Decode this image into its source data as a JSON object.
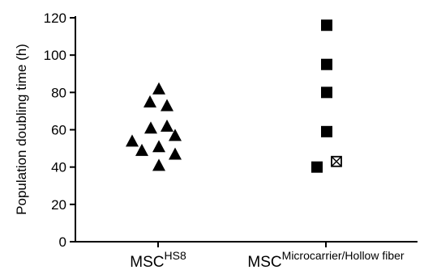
{
  "chart_data": {
    "type": "scatter",
    "title": "",
    "ylabel": "Population doubling time (h)",
    "xlabel": "",
    "ylim": [
      0,
      120
    ],
    "yticks": [
      0,
      20,
      40,
      60,
      80,
      100,
      120
    ],
    "grid": false,
    "legend": "none",
    "categories": [
      {
        "base": "MSC",
        "sup": "HS8"
      },
      {
        "base": "MSC",
        "sup": "Microcarrier/Hollow fiber"
      }
    ],
    "series": [
      {
        "category_index": 0,
        "marker": "triangle",
        "color": "#000000",
        "values": [
          82,
          75,
          73,
          61,
          62,
          57,
          54,
          49,
          51,
          47,
          41
        ]
      },
      {
        "category_index": 1,
        "marker": "square",
        "color": "#000000",
        "values": [
          116,
          95,
          80,
          59,
          40
        ]
      },
      {
        "category_index": 1,
        "marker": "crossed-square",
        "color": "#000000",
        "values": [
          43
        ]
      }
    ]
  }
}
